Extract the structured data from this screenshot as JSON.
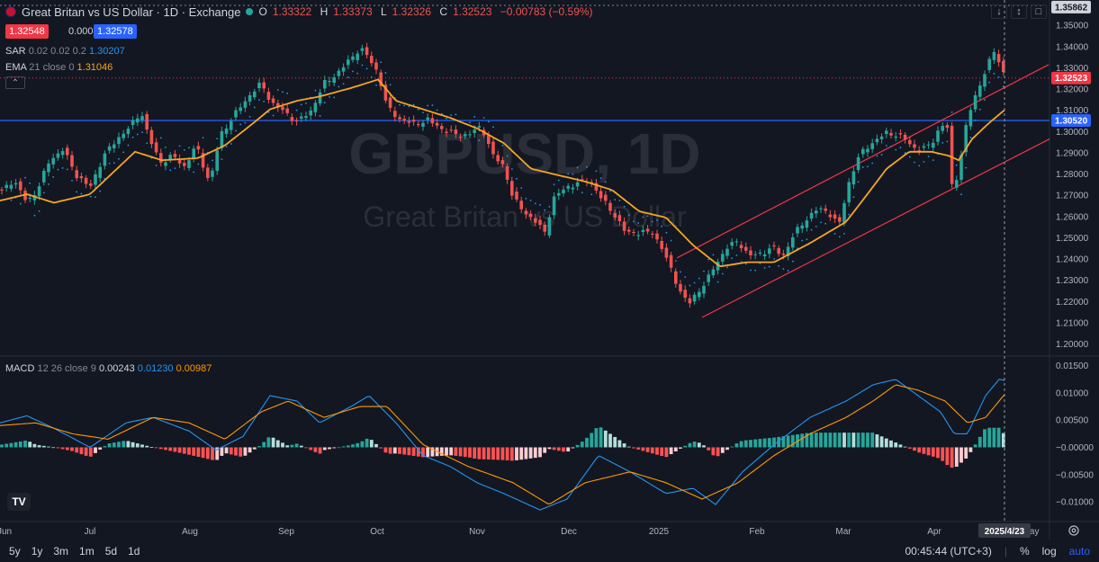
{
  "header": {
    "title": "Great Britan vs US Dollar · 1D · Exchange",
    "o_label": "O",
    "o": "1.33322",
    "h_label": "H",
    "h": "1.33373",
    "l_label": "L",
    "l": "1.32326",
    "c_label": "C",
    "c": "1.32523",
    "change": "−0.00783 (−0.59%)"
  },
  "quote": {
    "bid": "1.32548",
    "spread": "0.00030",
    "ask": "1.32578"
  },
  "indicators": {
    "sar_label": "SAR",
    "sar_params": "0.02 0.02 0.2",
    "sar_value": "1.30207",
    "ema_label": "EMA",
    "ema_params": "21 close 0",
    "ema_value": "1.31046",
    "macd_label": "MACD",
    "macd_params": "12 26 close 9",
    "macd_hist": "0.00243",
    "macd_line": "0.01230",
    "macd_signal": "0.00987",
    "collapse_icon": "chevron-up-icon"
  },
  "top_right": {
    "down_icon": "arrow-down-icon",
    "collapse_icon": "collapse-icon",
    "maximize_icon": "maximize-icon"
  },
  "watermark": {
    "symbol": "GBPUSD, 1D",
    "name": "Great Britan vs US Dollar"
  },
  "colors": {
    "up": "#26a69a",
    "down": "#ef5350",
    "ema": "#f5a623",
    "sar": "#2196f3",
    "hline": "#2962ff",
    "channel": "#f23645",
    "macd": "#2196f3",
    "signal": "#ff9800",
    "bg": "#131722"
  },
  "chart_data": [
    {
      "type": "candlestick",
      "title": "GBPUSD, 1D",
      "y_range": [
        1.196,
        1.3594
      ],
      "y_ticks": [
        "1.35000",
        "1.34000",
        "1.33000",
        "1.32000",
        "1.31000",
        "1.30000",
        "1.29000",
        "1.28000",
        "1.27000",
        "1.26000",
        "1.25000",
        "1.24000",
        "1.23000",
        "1.22000",
        "1.21000",
        "1.20000"
      ],
      "price_labels": {
        "top_marker": "1.35862",
        "last_price": "1.32523",
        "horizontal_line": "1.30520"
      },
      "horizontal_line": 1.3052,
      "x_labels": [
        "Jun",
        "Jul",
        "Aug",
        "Sep",
        "Oct",
        "Nov",
        "Dec",
        "2025",
        "Feb",
        "Mar",
        "Apr",
        "May"
      ],
      "crosshair_date": "2025/4/23",
      "anchors": [
        [
          0,
          1.271
        ],
        [
          15,
          1.2775
        ],
        [
          30,
          1.2665
        ],
        [
          42,
          1.273
        ],
        [
          55,
          1.2865
        ],
        [
          70,
          1.2915
        ],
        [
          85,
          1.2795
        ],
        [
          100,
          1.2735
        ],
        [
          115,
          1.2885
        ],
        [
          130,
          1.2965
        ],
        [
          145,
          1.3025
        ],
        [
          157,
          1.3095
        ],
        [
          165,
          1.2975
        ],
        [
          178,
          1.2855
        ],
        [
          192,
          1.2885
        ],
        [
          205,
          1.2835
        ],
        [
          218,
          1.2935
        ],
        [
          233,
          1.2755
        ],
        [
          245,
          1.2985
        ],
        [
          265,
          1.3105
        ],
        [
          280,
          1.3185
        ],
        [
          290,
          1.3225
        ],
        [
          302,
          1.3135
        ],
        [
          315,
          1.3095
        ],
        [
          330,
          1.3045
        ],
        [
          345,
          1.3095
        ],
        [
          360,
          1.3225
        ],
        [
          375,
          1.3275
        ],
        [
          390,
          1.3345
        ],
        [
          400,
          1.3395
        ],
        [
          410,
          1.3345
        ],
        [
          420,
          1.3275
        ],
        [
          430,
          1.3115
        ],
        [
          445,
          1.3055
        ],
        [
          460,
          1.3035
        ],
        [
          475,
          1.3055
        ],
        [
          490,
          1.3015
        ],
        [
          505,
          1.2985
        ],
        [
          520,
          1.2985
        ],
        [
          535,
          1.3025
        ],
        [
          548,
          1.2885
        ],
        [
          560,
          1.2835
        ],
        [
          570,
          1.2685
        ],
        [
          582,
          1.2625
        ],
        [
          595,
          1.2575
        ],
        [
          605,
          1.2525
        ],
        [
          615,
          1.2685
        ],
        [
          628,
          1.2735
        ],
        [
          640,
          1.2755
        ],
        [
          655,
          1.2775
        ],
        [
          668,
          1.2685
        ],
        [
          680,
          1.2625
        ],
        [
          695,
          1.2525
        ],
        [
          710,
          1.2525
        ],
        [
          725,
          1.2525
        ],
        [
          735,
          1.2455
        ],
        [
          745,
          1.2355
        ],
        [
          755,
          1.2255
        ],
        [
          765,
          1.2185
        ],
        [
          775,
          1.2245
        ],
        [
          785,
          1.2295
        ],
        [
          795,
          1.2375
        ],
        [
          808,
          1.2455
        ],
        [
          820,
          1.2485
        ],
        [
          832,
          1.2415
        ],
        [
          845,
          1.2425
        ],
        [
          858,
          1.2455
        ],
        [
          870,
          1.2415
        ],
        [
          882,
          1.2515
        ],
        [
          895,
          1.2585
        ],
        [
          908,
          1.2635
        ],
        [
          920,
          1.2625
        ],
        [
          932,
          1.2555
        ],
        [
          942,
          1.2745
        ],
        [
          952,
          1.2865
        ],
        [
          962,
          1.2925
        ],
        [
          972,
          1.2955
        ],
        [
          985,
          1.2995
        ],
        [
          995,
          1.2985
        ],
        [
          1005,
          1.2965
        ],
        [
          1015,
          1.2925
        ],
        [
          1025,
          1.2915
        ],
        [
          1035,
          1.2945
        ],
        [
          1045,
          1.3025
        ],
        [
          1052,
          1.3035
        ],
        [
          1058,
          1.2725
        ],
        [
          1065,
          1.2815
        ],
        [
          1075,
          1.3065
        ],
        [
          1085,
          1.3185
        ],
        [
          1095,
          1.3285
        ],
        [
          1105,
          1.3385
        ],
        [
          1117,
          1.3252
        ]
      ],
      "ema_anchors": [
        [
          0,
          1.2675
        ],
        [
          30,
          1.2705
        ],
        [
          60,
          1.2665
        ],
        [
          100,
          1.2705
        ],
        [
          150,
          1.2905
        ],
        [
          180,
          1.2865
        ],
        [
          220,
          1.2875
        ],
        [
          250,
          1.2935
        ],
        [
          280,
          1.3035
        ],
        [
          300,
          1.3105
        ],
        [
          330,
          1.3145
        ],
        [
          355,
          1.3165
        ],
        [
          390,
          1.3205
        ],
        [
          420,
          1.3245
        ],
        [
          440,
          1.3145
        ],
        [
          470,
          1.3105
        ],
        [
          500,
          1.3065
        ],
        [
          530,
          1.3015
        ],
        [
          560,
          1.2945
        ],
        [
          590,
          1.2825
        ],
        [
          620,
          1.2795
        ],
        [
          650,
          1.2765
        ],
        [
          680,
          1.2725
        ],
        [
          710,
          1.2625
        ],
        [
          740,
          1.2595
        ],
        [
          770,
          1.2465
        ],
        [
          800,
          1.2365
        ],
        [
          830,
          1.2385
        ],
        [
          860,
          1.2385
        ],
        [
          900,
          1.2475
        ],
        [
          940,
          1.2575
        ],
        [
          960,
          1.2685
        ],
        [
          985,
          1.2825
        ],
        [
          1010,
          1.2905
        ],
        [
          1035,
          1.2905
        ],
        [
          1055,
          1.2885
        ],
        [
          1065,
          1.2865
        ],
        [
          1080,
          1.2965
        ],
        [
          1100,
          1.3045
        ],
        [
          1117,
          1.3105
        ]
      ],
      "channel_lines": [
        [
          [
            752,
            1.2405
          ],
          [
            1165,
            1.3315
          ]
        ],
        [
          [
            780,
            1.2125
          ],
          [
            1166,
            1.2965
          ]
        ]
      ]
    },
    {
      "type": "histogram+line",
      "title": "MACD 12 26 close 9",
      "y_range": [
        -0.0133,
        0.0166
      ],
      "y_ticks": [
        "0.01500",
        "0.01000",
        "0.00500",
        "−0.00000",
        "−0.00500",
        "−0.01000"
      ],
      "macd_anchors": [
        [
          0,
          0.0045
        ],
        [
          30,
          0.0058
        ],
        [
          60,
          0.0035
        ],
        [
          100,
          0.0
        ],
        [
          140,
          0.0045
        ],
        [
          170,
          0.0055
        ],
        [
          210,
          0.003
        ],
        [
          240,
          -0.0005
        ],
        [
          270,
          0.002
        ],
        [
          300,
          0.0095
        ],
        [
          330,
          0.0085
        ],
        [
          355,
          0.0045
        ],
        [
          390,
          0.0075
        ],
        [
          410,
          0.0095
        ],
        [
          440,
          0.0045
        ],
        [
          470,
          -0.0015
        ],
        [
          500,
          -0.0035
        ],
        [
          530,
          -0.0065
        ],
        [
          560,
          -0.0085
        ],
        [
          600,
          -0.0115
        ],
        [
          630,
          -0.0095
        ],
        [
          665,
          -0.0015
        ],
        [
          700,
          -0.0045
        ],
        [
          740,
          -0.0085
        ],
        [
          770,
          -0.0075
        ],
        [
          795,
          -0.0105
        ],
        [
          825,
          -0.0045
        ],
        [
          860,
          0.0005
        ],
        [
          900,
          0.0055
        ],
        [
          940,
          0.0085
        ],
        [
          970,
          0.0115
        ],
        [
          995,
          0.0125
        ],
        [
          1020,
          0.0095
        ],
        [
          1045,
          0.0065
        ],
        [
          1060,
          0.0025
        ],
        [
          1075,
          0.0025
        ],
        [
          1095,
          0.0095
        ],
        [
          1110,
          0.0125
        ],
        [
          1117,
          0.0123
        ]
      ],
      "signal_anchors": [
        [
          0,
          0.004
        ],
        [
          40,
          0.0045
        ],
        [
          80,
          0.0025
        ],
        [
          120,
          0.0015
        ],
        [
          170,
          0.0055
        ],
        [
          210,
          0.0045
        ],
        [
          250,
          0.0015
        ],
        [
          290,
          0.0065
        ],
        [
          320,
          0.0085
        ],
        [
          360,
          0.0055
        ],
        [
          400,
          0.0075
        ],
        [
          430,
          0.0075
        ],
        [
          470,
          0.0005
        ],
        [
          520,
          -0.0035
        ],
        [
          570,
          -0.0065
        ],
        [
          610,
          -0.0105
        ],
        [
          650,
          -0.0065
        ],
        [
          700,
          -0.0045
        ],
        [
          740,
          -0.0065
        ],
        [
          780,
          -0.0095
        ],
        [
          820,
          -0.0065
        ],
        [
          860,
          -0.0015
        ],
        [
          900,
          0.0025
        ],
        [
          940,
          0.0055
        ],
        [
          970,
          0.0085
        ],
        [
          995,
          0.0115
        ],
        [
          1020,
          0.0105
        ],
        [
          1050,
          0.0085
        ],
        [
          1075,
          0.0045
        ],
        [
          1095,
          0.0055
        ],
        [
          1117,
          0.0099
        ]
      ]
    }
  ],
  "toolbar": {
    "ranges": [
      "5y",
      "1y",
      "3m",
      "1m",
      "5d",
      "1d"
    ],
    "clock": "00:45:44 (UTC+3)",
    "percent": "%",
    "log": "log",
    "auto": "auto",
    "logo": "TV",
    "settings_icon": "gear-icon"
  }
}
